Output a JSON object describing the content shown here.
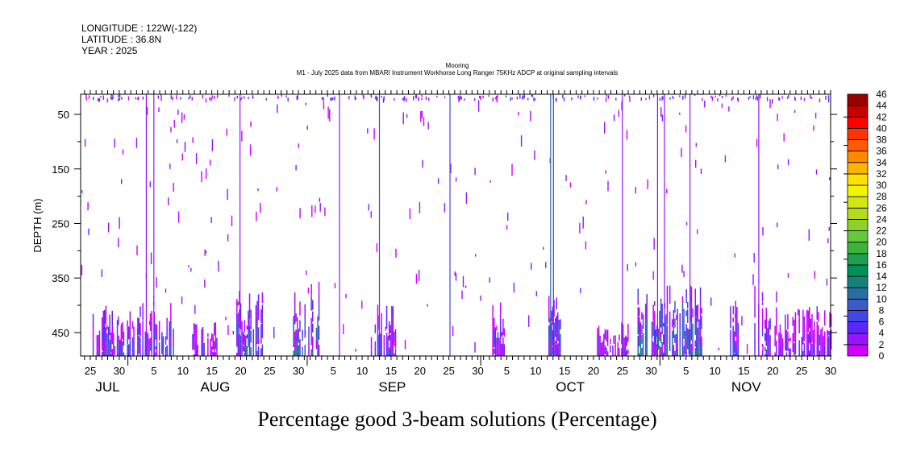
{
  "header": {
    "longitude": "LONGITUDE : 122W(-122)",
    "latitude": "LATITUDE : 36.8N",
    "year": "YEAR : 2025",
    "subtitle1": "Mooring",
    "subtitle2": "M1 - July 2025 data from MBARI Instrument Workhorse Long Ranger 75KHz ADCP at original sampling intervals"
  },
  "chart_data": {
    "type": "heatmap",
    "title": "Percentage good 3-beam solutions (Percentage)",
    "ylabel": "DEPTH (m)",
    "xlabel": "",
    "x_units": "days since 2025-07-25 12:00",
    "xlim": [
      -1.67,
      128
    ],
    "ylim": [
      493,
      13
    ],
    "y_ticks": [
      {
        "value": 50,
        "label": "50"
      },
      {
        "value": 150,
        "label": "150"
      },
      {
        "value": 250,
        "label": "250"
      },
      {
        "value": 350,
        "label": "350"
      },
      {
        "value": 450,
        "label": "450"
      }
    ],
    "x_ticks": [
      {
        "value": 0,
        "label": "25"
      },
      {
        "value": 5,
        "label": "30"
      },
      {
        "value": 11,
        "label": "5"
      },
      {
        "value": 16,
        "label": "10"
      },
      {
        "value": 21,
        "label": "15"
      },
      {
        "value": 26,
        "label": "20"
      },
      {
        "value": 31,
        "label": "25"
      },
      {
        "value": 36,
        "label": "30"
      },
      {
        "value": 42,
        "label": "5"
      },
      {
        "value": 47,
        "label": "10"
      },
      {
        "value": 52,
        "label": "15"
      },
      {
        "value": 57,
        "label": "20"
      },
      {
        "value": 62,
        "label": "25"
      },
      {
        "value": 67,
        "label": "30"
      },
      {
        "value": 72,
        "label": "5"
      },
      {
        "value": 77,
        "label": "10"
      },
      {
        "value": 82,
        "label": "15"
      },
      {
        "value": 87,
        "label": "20"
      },
      {
        "value": 92,
        "label": "25"
      },
      {
        "value": 97,
        "label": "30"
      },
      {
        "value": 103,
        "label": "5"
      },
      {
        "value": 108,
        "label": "10"
      },
      {
        "value": 113,
        "label": "15"
      },
      {
        "value": 118,
        "label": "20"
      },
      {
        "value": 123,
        "label": "25"
      },
      {
        "value": 128,
        "label": "30"
      }
    ],
    "months": [
      {
        "label": "JUL",
        "center": 3,
        "start": -1.67
      },
      {
        "label": "AUG",
        "center": 21.6,
        "start": 6.5
      },
      {
        "label": "SEP",
        "center": 52.2,
        "start": 37.5
      },
      {
        "label": "OCT",
        "center": 83,
        "start": 67.5
      },
      {
        "label": "NOV",
        "center": 113.4,
        "start": 98.5
      }
    ],
    "colorbar": {
      "levels": [
        0,
        2,
        4,
        6,
        8,
        10,
        12,
        14,
        16,
        18,
        20,
        22,
        24,
        26,
        28,
        30,
        32,
        34,
        36,
        38,
        40,
        42,
        44,
        46
      ],
      "colors": [
        "#d200ff",
        "#9614ff",
        "#5a28ff",
        "#4146e6",
        "#3c5ac8",
        "#286ea0",
        "#14827a",
        "#00905a",
        "#1ea050",
        "#3cb43c",
        "#64c83c",
        "#8cd228",
        "#b4dc1e",
        "#d2e614",
        "#f0f500",
        "#ffe000",
        "#ffb400",
        "#ff8a00",
        "#ff5a00",
        "#ff3300",
        "#ff0000",
        "#c80000",
        "#9b0000"
      ]
    },
    "full_depth_lines": [
      {
        "day": 9.6,
        "value": 3
      },
      {
        "day": 10.9,
        "value": 3
      },
      {
        "day": 25.8,
        "value": 3
      },
      {
        "day": 43.0,
        "value": 3
      },
      {
        "day": 49.9,
        "value": 7
      },
      {
        "day": 62.1,
        "value": 7
      },
      {
        "day": 79.5,
        "value": 11
      },
      {
        "day": 80.0,
        "value": 5
      },
      {
        "day": 91.9,
        "value": 3
      },
      {
        "day": 98.0,
        "value": 5
      },
      {
        "day": 99.2,
        "value": 3
      },
      {
        "day": 103.6,
        "value": 3
      },
      {
        "day": 115.5,
        "value": 3
      }
    ],
    "bottom_clusters": [
      {
        "day_start": 0.4,
        "day_end": 14.4,
        "top_depth": 395,
        "max_value": 11
      },
      {
        "day_start": 17.6,
        "day_end": 22.0,
        "top_depth": 430,
        "max_value": 9
      },
      {
        "day_start": 24.8,
        "day_end": 29.7,
        "top_depth": 370,
        "max_value": 13
      },
      {
        "day_start": 34.6,
        "day_end": 39.5,
        "top_depth": 345,
        "max_value": 15
      },
      {
        "day_start": 48.5,
        "day_end": 52.7,
        "top_depth": 380,
        "max_value": 11
      },
      {
        "day_start": 69.5,
        "day_end": 71.5,
        "top_depth": 390,
        "max_value": 9
      },
      {
        "day_start": 79.2,
        "day_end": 81.3,
        "top_depth": 380,
        "max_value": 13
      },
      {
        "day_start": 87.6,
        "day_end": 93.0,
        "top_depth": 430,
        "max_value": 7
      },
      {
        "day_start": 94.6,
        "day_end": 105.7,
        "top_depth": 360,
        "max_value": 17
      },
      {
        "day_start": 110.6,
        "day_end": 112.0,
        "top_depth": 380,
        "max_value": 9
      },
      {
        "day_start": 114.8,
        "day_end": 117.6,
        "top_depth": 360,
        "max_value": 9
      },
      {
        "day_start": 118.3,
        "day_end": 128.0,
        "top_depth": 400,
        "max_value": 7
      }
    ]
  }
}
